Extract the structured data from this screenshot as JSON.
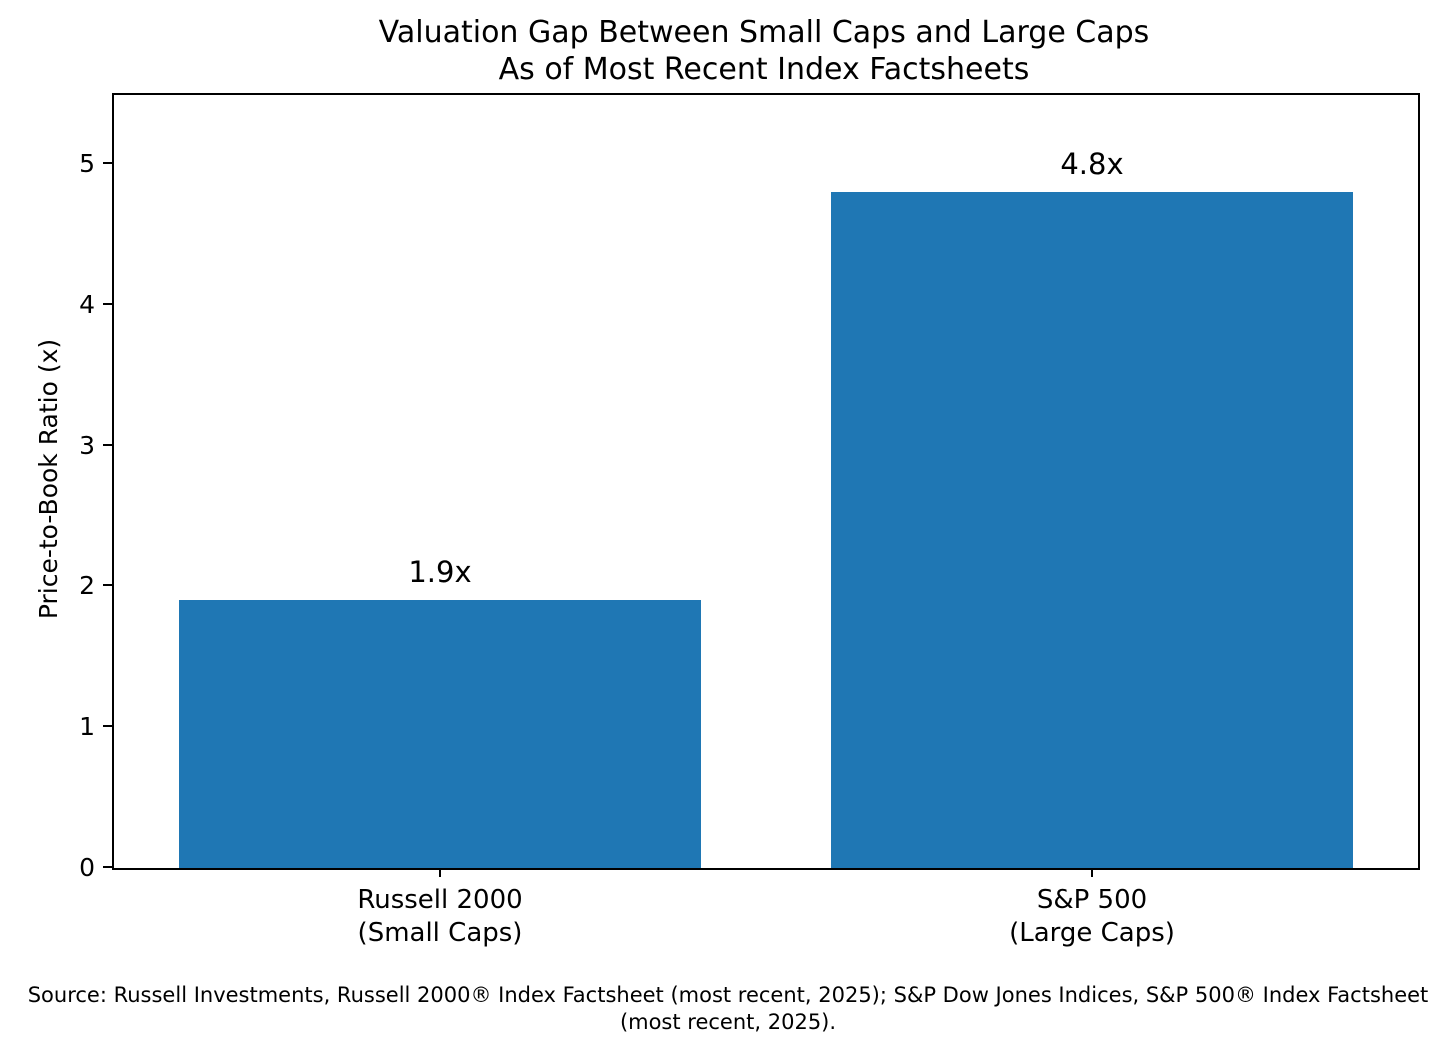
{
  "chart_data": {
    "type": "bar",
    "title": "Valuation Gap Between Small Caps and Large Caps",
    "subtitle": "As of Most Recent Index Factsheets",
    "categories": [
      {
        "line1": "Russell 2000",
        "line2": "(Small Caps)"
      },
      {
        "line1": "S&P 500",
        "line2": "(Large Caps)"
      }
    ],
    "values": [
      1.9,
      4.8
    ],
    "bar_labels": [
      "1.9x",
      "4.8x"
    ],
    "xlabel": "",
    "ylabel": "Price-to-Book Ratio (x)",
    "yticks": [
      0,
      1,
      2,
      3,
      4,
      5
    ],
    "ylim": [
      0,
      5.49
    ],
    "grid": false,
    "legend": "none",
    "bar_color": "#1f77b4",
    "source": "Source: Russell Investments, Russell 2000® Index Factsheet (most recent, 2025); S&P Dow Jones Indices, S&P 500® Index Factsheet (most recent, 2025)."
  }
}
